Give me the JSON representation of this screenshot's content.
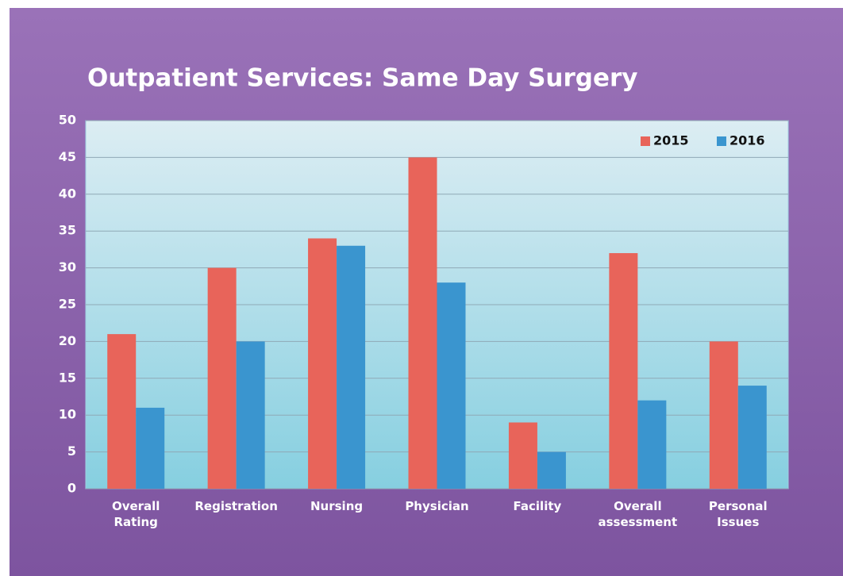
{
  "chart_data": {
    "type": "bar",
    "title": "Outpatient Services: Same Day Surgery",
    "categories": [
      "Overall Rating",
      "Registration",
      "Nursing",
      "Physician",
      "Facility",
      "Overall assessment",
      "Personal Issues"
    ],
    "series": [
      {
        "name": "2015",
        "color": "#e8645a",
        "values": [
          21,
          30,
          34,
          45,
          9,
          32,
          20
        ]
      },
      {
        "name": "2016",
        "color": "#3a95cf",
        "values": [
          11,
          20,
          33,
          28,
          5,
          12,
          14
        ]
      }
    ],
    "ylim": [
      0,
      50
    ],
    "yticks": [
      0,
      5,
      10,
      15,
      20,
      25,
      30,
      35,
      40,
      45,
      50
    ],
    "grid": true,
    "legend": "upper right"
  }
}
